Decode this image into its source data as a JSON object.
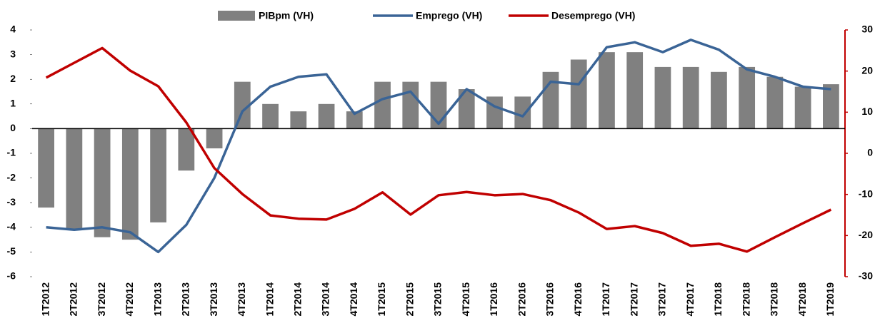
{
  "chart_data": {
    "type": "bar-line",
    "categories": [
      "1T2012",
      "2T2012",
      "3T2012",
      "4T2012",
      "1T2013",
      "2T2013",
      "3T2013",
      "4T2013",
      "1T2014",
      "2T2014",
      "3T2014",
      "4T2014",
      "1T2015",
      "2T2015",
      "3T2015",
      "4T2015",
      "1T2016",
      "2T2016",
      "3T2016",
      "4T2016",
      "1T2017",
      "2T2017",
      "3T2017",
      "4T2017",
      "1T2018",
      "2T2018",
      "3T2018",
      "4T2018",
      "1T2019"
    ],
    "series": [
      {
        "name": "PIBpm (VH)",
        "type": "bar",
        "color": "#808080",
        "axis": "y",
        "values": [
          -3.2,
          -4.1,
          -4.4,
          -4.5,
          -3.8,
          -1.7,
          -0.8,
          1.9,
          1.0,
          0.7,
          1.0,
          0.7,
          1.9,
          1.9,
          1.9,
          1.6,
          1.3,
          1.3,
          2.3,
          2.8,
          3.1,
          3.1,
          2.5,
          2.5,
          2.3,
          2.5,
          2.1,
          1.7,
          1.8
        ]
      },
      {
        "name": "Emprego (VH)",
        "type": "line",
        "color": "#3a6496",
        "axis": "y",
        "values": [
          -4.0,
          -4.1,
          -4.0,
          -4.2,
          -5.0,
          -3.9,
          -2.0,
          0.7,
          1.7,
          2.1,
          2.2,
          0.6,
          1.2,
          1.5,
          0.2,
          1.6,
          0.9,
          0.5,
          1.9,
          1.8,
          3.3,
          3.5,
          3.1,
          3.6,
          3.2,
          2.4,
          2.1,
          1.7,
          1.6
        ]
      },
      {
        "name": "Desemprego (VH)",
        "type": "line",
        "color": "#c00000",
        "axis": "y2",
        "values": [
          18.4,
          22.0,
          25.6,
          20.1,
          16.3,
          7.5,
          -3.6,
          -9.9,
          -15.1,
          -15.9,
          -16.1,
          -13.5,
          -9.5,
          -14.9,
          -10.2,
          -9.4,
          -10.2,
          -9.9,
          -11.4,
          -14.4,
          -18.4,
          -17.7,
          -19.4,
          -22.5,
          -22.0,
          -23.9,
          -20.4,
          -17.0,
          -13.7
        ]
      }
    ],
    "ylim": [
      -6,
      4
    ],
    "yticks": [
      -6,
      -5,
      -4,
      -3,
      -2,
      -1,
      0,
      1,
      2,
      3,
      4
    ],
    "y2lim": [
      -30,
      30
    ],
    "y2ticks": [
      -30,
      -20,
      -10,
      0,
      10,
      20,
      30
    ],
    "y2_axis_color": "#c00000",
    "grid": false,
    "legend": "top"
  }
}
